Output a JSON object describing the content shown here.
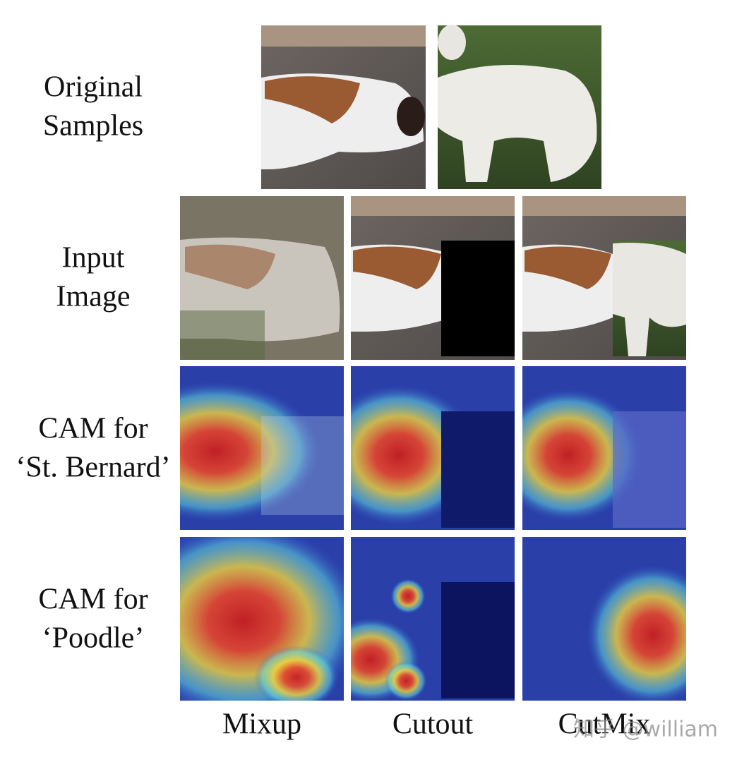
{
  "rows": [
    {
      "label_lines": [
        "Original",
        "Samples"
      ]
    },
    {
      "label_lines": [
        "Input",
        "Image"
      ]
    },
    {
      "label_lines": [
        "CAM for",
        "‘St. Bernard’"
      ]
    },
    {
      "label_lines": [
        "CAM for",
        "‘Poodle’"
      ]
    }
  ],
  "columns": [
    "Mixup",
    "Cutout",
    "CutMix"
  ],
  "watermark": "知乎 @william"
}
